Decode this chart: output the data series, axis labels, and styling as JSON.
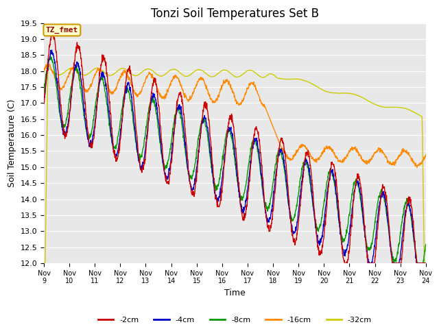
{
  "title": "Tonzi Soil Temperatures Set B",
  "xlabel": "Time",
  "ylabel": "Soil Temperature (C)",
  "ylim": [
    12.0,
    19.5
  ],
  "yticks": [
    12.0,
    12.5,
    13.0,
    13.5,
    14.0,
    14.5,
    15.0,
    15.5,
    16.0,
    16.5,
    17.0,
    17.5,
    18.0,
    18.5,
    19.0,
    19.5
  ],
  "xtick_labels": [
    "Nov 9",
    "Nov 10",
    "Nov 11",
    "Nov 12",
    "Nov 13",
    "Nov 14",
    "Nov 15",
    "Nov 16",
    "Nov 17",
    "Nov 18",
    "Nov 19",
    "Nov 20",
    "Nov 21",
    "Nov 22",
    "Nov 23",
    "Nov 24"
  ],
  "colors": {
    "-2cm": "#cc0000",
    "-4cm": "#0000cc",
    "-8cm": "#009900",
    "-16cm": "#ff8800",
    "-32cm": "#cccc00"
  },
  "legend_labels": [
    "-2cm",
    "-4cm",
    "-8cm",
    "-16cm",
    "-32cm"
  ],
  "annotation_text": "TZ_fmet",
  "annotation_color": "#990000",
  "annotation_bg": "#ffffcc",
  "annotation_border": "#cc9900",
  "plot_bg": "#e8e8e8",
  "grid_color": "#ffffff",
  "title_fontsize": 12,
  "axis_label_fontsize": 9,
  "tick_fontsize": 8
}
